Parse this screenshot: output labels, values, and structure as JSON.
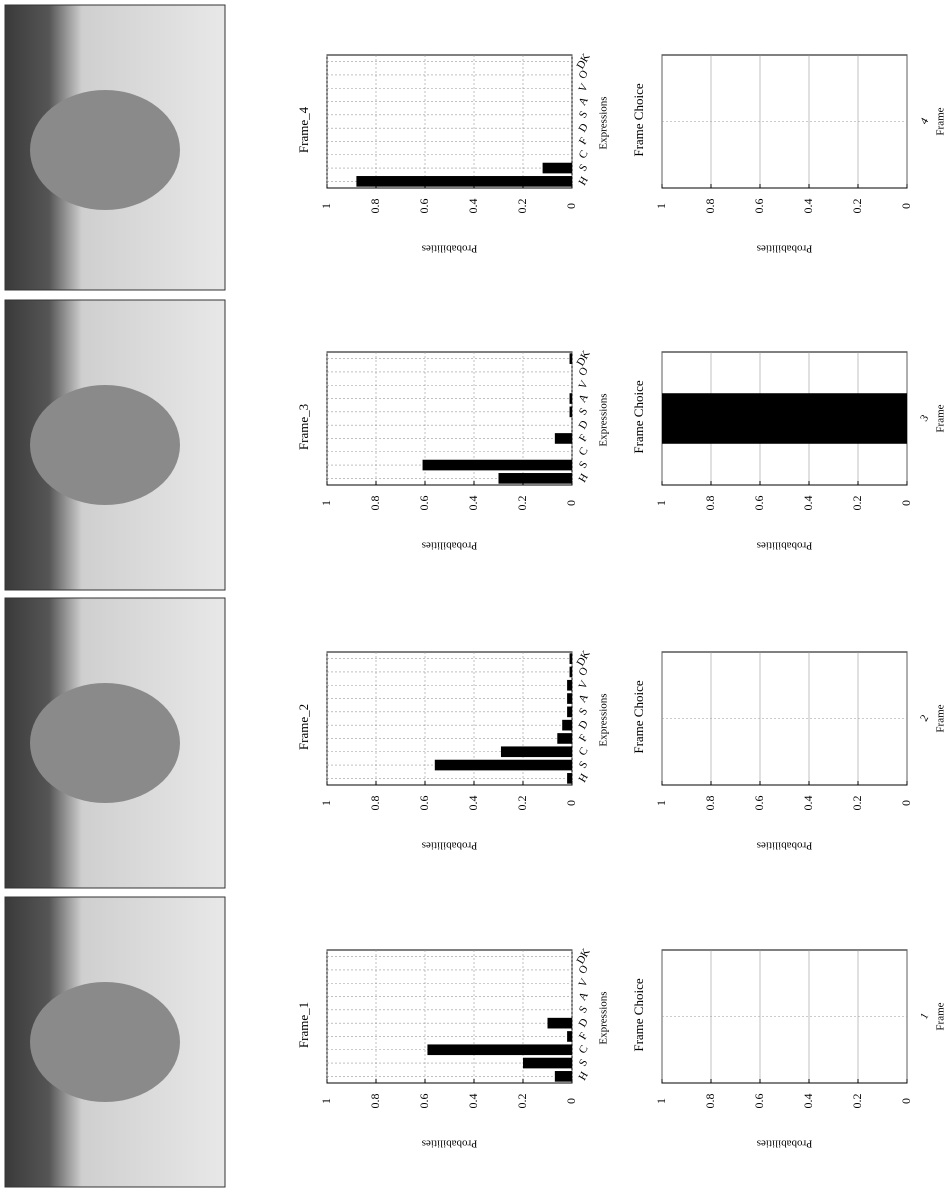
{
  "chart_data": [
    {
      "type": "bar",
      "title": "Frame_1",
      "xlabel": "Expressions",
      "ylabel": "Probabilities",
      "categories": [
        "H",
        "S",
        "C",
        "F",
        "D",
        "S",
        "A",
        "V",
        "O",
        "DK"
      ],
      "values": [
        0.07,
        0.2,
        0.59,
        0.02,
        0.1,
        0,
        0,
        0,
        0,
        0
      ],
      "color": "#000000",
      "ylim": [
        0,
        1
      ],
      "yticks": [
        0,
        0.2,
        0.4,
        0.6,
        0.8,
        1
      ],
      "grid": true
    },
    {
      "type": "bar",
      "title": "Frame_2",
      "xlabel": "Expressions",
      "ylabel": "Probabilities",
      "categories": [
        "H",
        "S",
        "C",
        "F",
        "D",
        "S",
        "A",
        "V",
        "O",
        "DK"
      ],
      "values": [
        0.02,
        0.56,
        0.29,
        0.06,
        0.04,
        0.02,
        0.02,
        0.02,
        0.01,
        0.01
      ],
      "color": "#000000",
      "ylim": [
        0,
        1
      ],
      "yticks": [
        0,
        0.2,
        0.4,
        0.6,
        0.8,
        1
      ],
      "grid": true
    },
    {
      "type": "bar",
      "title": "Frame_3",
      "xlabel": "Expressions",
      "ylabel": "Probabilities",
      "categories": [
        "H",
        "S",
        "C",
        "F",
        "D",
        "S",
        "A",
        "V",
        "O",
        "DK"
      ],
      "values": [
        0.3,
        0.61,
        0,
        0.07,
        0,
        0.01,
        0.01,
        0,
        0,
        0.01
      ],
      "color": "#000000",
      "ylim": [
        0,
        1
      ],
      "yticks": [
        0,
        0.2,
        0.4,
        0.6,
        0.8,
        1
      ],
      "grid": true
    },
    {
      "type": "bar",
      "title": "Frame_4",
      "xlabel": "Expressions",
      "ylabel": "Probabilities",
      "categories": [
        "H",
        "S",
        "C",
        "F",
        "D",
        "S",
        "A",
        "V",
        "O",
        "DK"
      ],
      "values": [
        0.88,
        0.12,
        0,
        0,
        0,
        0,
        0,
        0,
        0,
        0
      ],
      "color": "#000000",
      "ylim": [
        0,
        1
      ],
      "yticks": [
        0,
        0.2,
        0.4,
        0.6,
        0.8,
        1
      ],
      "grid": true
    },
    {
      "type": "bar",
      "title": "Frame Choice",
      "xlabel": "Frame",
      "ylabel": "Probabilities",
      "categories": [
        "1"
      ],
      "values": [
        0
      ],
      "color": "#000000",
      "ylim": [
        0,
        1
      ],
      "yticks": [
        0,
        0.2,
        0.4,
        0.6,
        0.8,
        1
      ],
      "grid": true
    },
    {
      "type": "bar",
      "title": "Frame Choice",
      "xlabel": "Frame",
      "ylabel": "Probabilities",
      "categories": [
        "2"
      ],
      "values": [
        0
      ],
      "color": "#000000",
      "ylim": [
        0,
        1
      ],
      "yticks": [
        0,
        0.2,
        0.4,
        0.6,
        0.8,
        1
      ],
      "grid": true
    },
    {
      "type": "bar",
      "title": "Frame Choice",
      "xlabel": "Frame",
      "ylabel": "Probabilities",
      "categories": [
        "3"
      ],
      "values": [
        1
      ],
      "color": "#000000",
      "ylim": [
        0,
        1
      ],
      "yticks": [
        0,
        0.2,
        0.4,
        0.6,
        0.8,
        1
      ],
      "grid": true
    },
    {
      "type": "bar",
      "title": "Frame Choice",
      "xlabel": "Frame",
      "ylabel": "Probabilities",
      "categories": [
        "4"
      ],
      "values": [
        0
      ],
      "color": "#000000",
      "ylim": [
        0,
        1
      ],
      "yticks": [
        0,
        0.2,
        0.4,
        0.6,
        0.8,
        1
      ],
      "grid": true
    }
  ]
}
